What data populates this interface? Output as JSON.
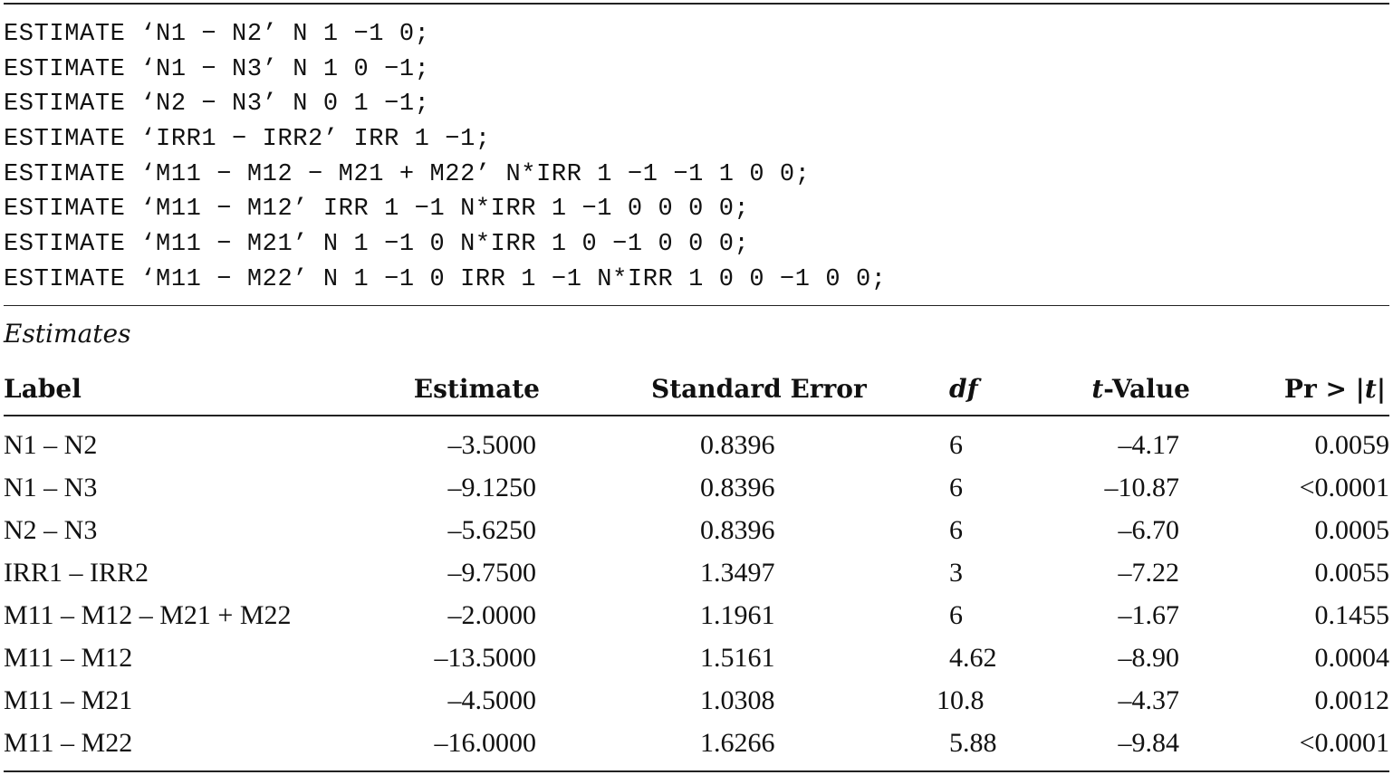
{
  "code_lines": [
    "ESTIMATE ‘N1 − N2’ N 1 −1 0;",
    "ESTIMATE ‘N1 − N3’ N 1 0 −1;",
    "ESTIMATE ‘N2 − N3’ N 0 1 −1;",
    "ESTIMATE ‘IRR1 − IRR2’ IRR 1 −1;",
    "ESTIMATE ‘M11 − M12 − M21 + M22’ N*IRR 1 −1 −1 1 0 0;",
    "ESTIMATE ‘M11 − M12’ IRR 1 −1 N*IRR 1 −1 0 0 0 0;",
    "ESTIMATE ‘M11 − M21’ N 1 −1 0 N*IRR 1 0 −1 0 0 0;",
    "ESTIMATE ‘M11 − M22’ N 1 −1 0 IRR 1 −1 N*IRR 1 0 0 −1 0 0;"
  ],
  "caption": "Estimates",
  "headers": {
    "label": "Label",
    "estimate": "Estimate",
    "stderr": "Standard Error",
    "df": "df",
    "t_prefix": "t",
    "t_suffix": "-Value",
    "pr_prefix": "Pr > |",
    "pr_t": "t",
    "pr_suffix": "|"
  },
  "rows": [
    {
      "label": "N1 – N2",
      "estimate": "–3.5000",
      "stderr": "0.8396",
      "df": "6",
      "t": "–4.17",
      "p": "0.0059"
    },
    {
      "label": "N1 – N3",
      "estimate": "–9.1250",
      "stderr": "0.8396",
      "df": "6",
      "t": "–10.87",
      "p": "<0.0001"
    },
    {
      "label": "N2 – N3",
      "estimate": "–5.6250",
      "stderr": "0.8396",
      "df": "6",
      "t": "–6.70",
      "p": "0.0005"
    },
    {
      "label": "IRR1 – IRR2",
      "estimate": "–9.7500",
      "stderr": "1.3497",
      "df": "3",
      "t": "–7.22",
      "p": "0.0055"
    },
    {
      "label": "M11 – M12 – M21 + M22",
      "estimate": "–2.0000",
      "stderr": "1.1961",
      "df": "6",
      "t": "–1.67",
      "p": "0.1455"
    },
    {
      "label": "M11 – M12",
      "estimate": "–13.5000",
      "stderr": "1.5161",
      "df": "4.62",
      "t": "–8.90",
      "p": "0.0004"
    },
    {
      "label": "M11 – M21",
      "estimate": "–4.5000",
      "stderr": "1.0308",
      "df": "10.8",
      "t": "–4.37",
      "p": "0.0012"
    },
    {
      "label": "M11 – M22",
      "estimate": "–16.0000",
      "stderr": "1.6266",
      "df": "5.88",
      "t": "–9.84",
      "p": "<0.0001"
    }
  ]
}
